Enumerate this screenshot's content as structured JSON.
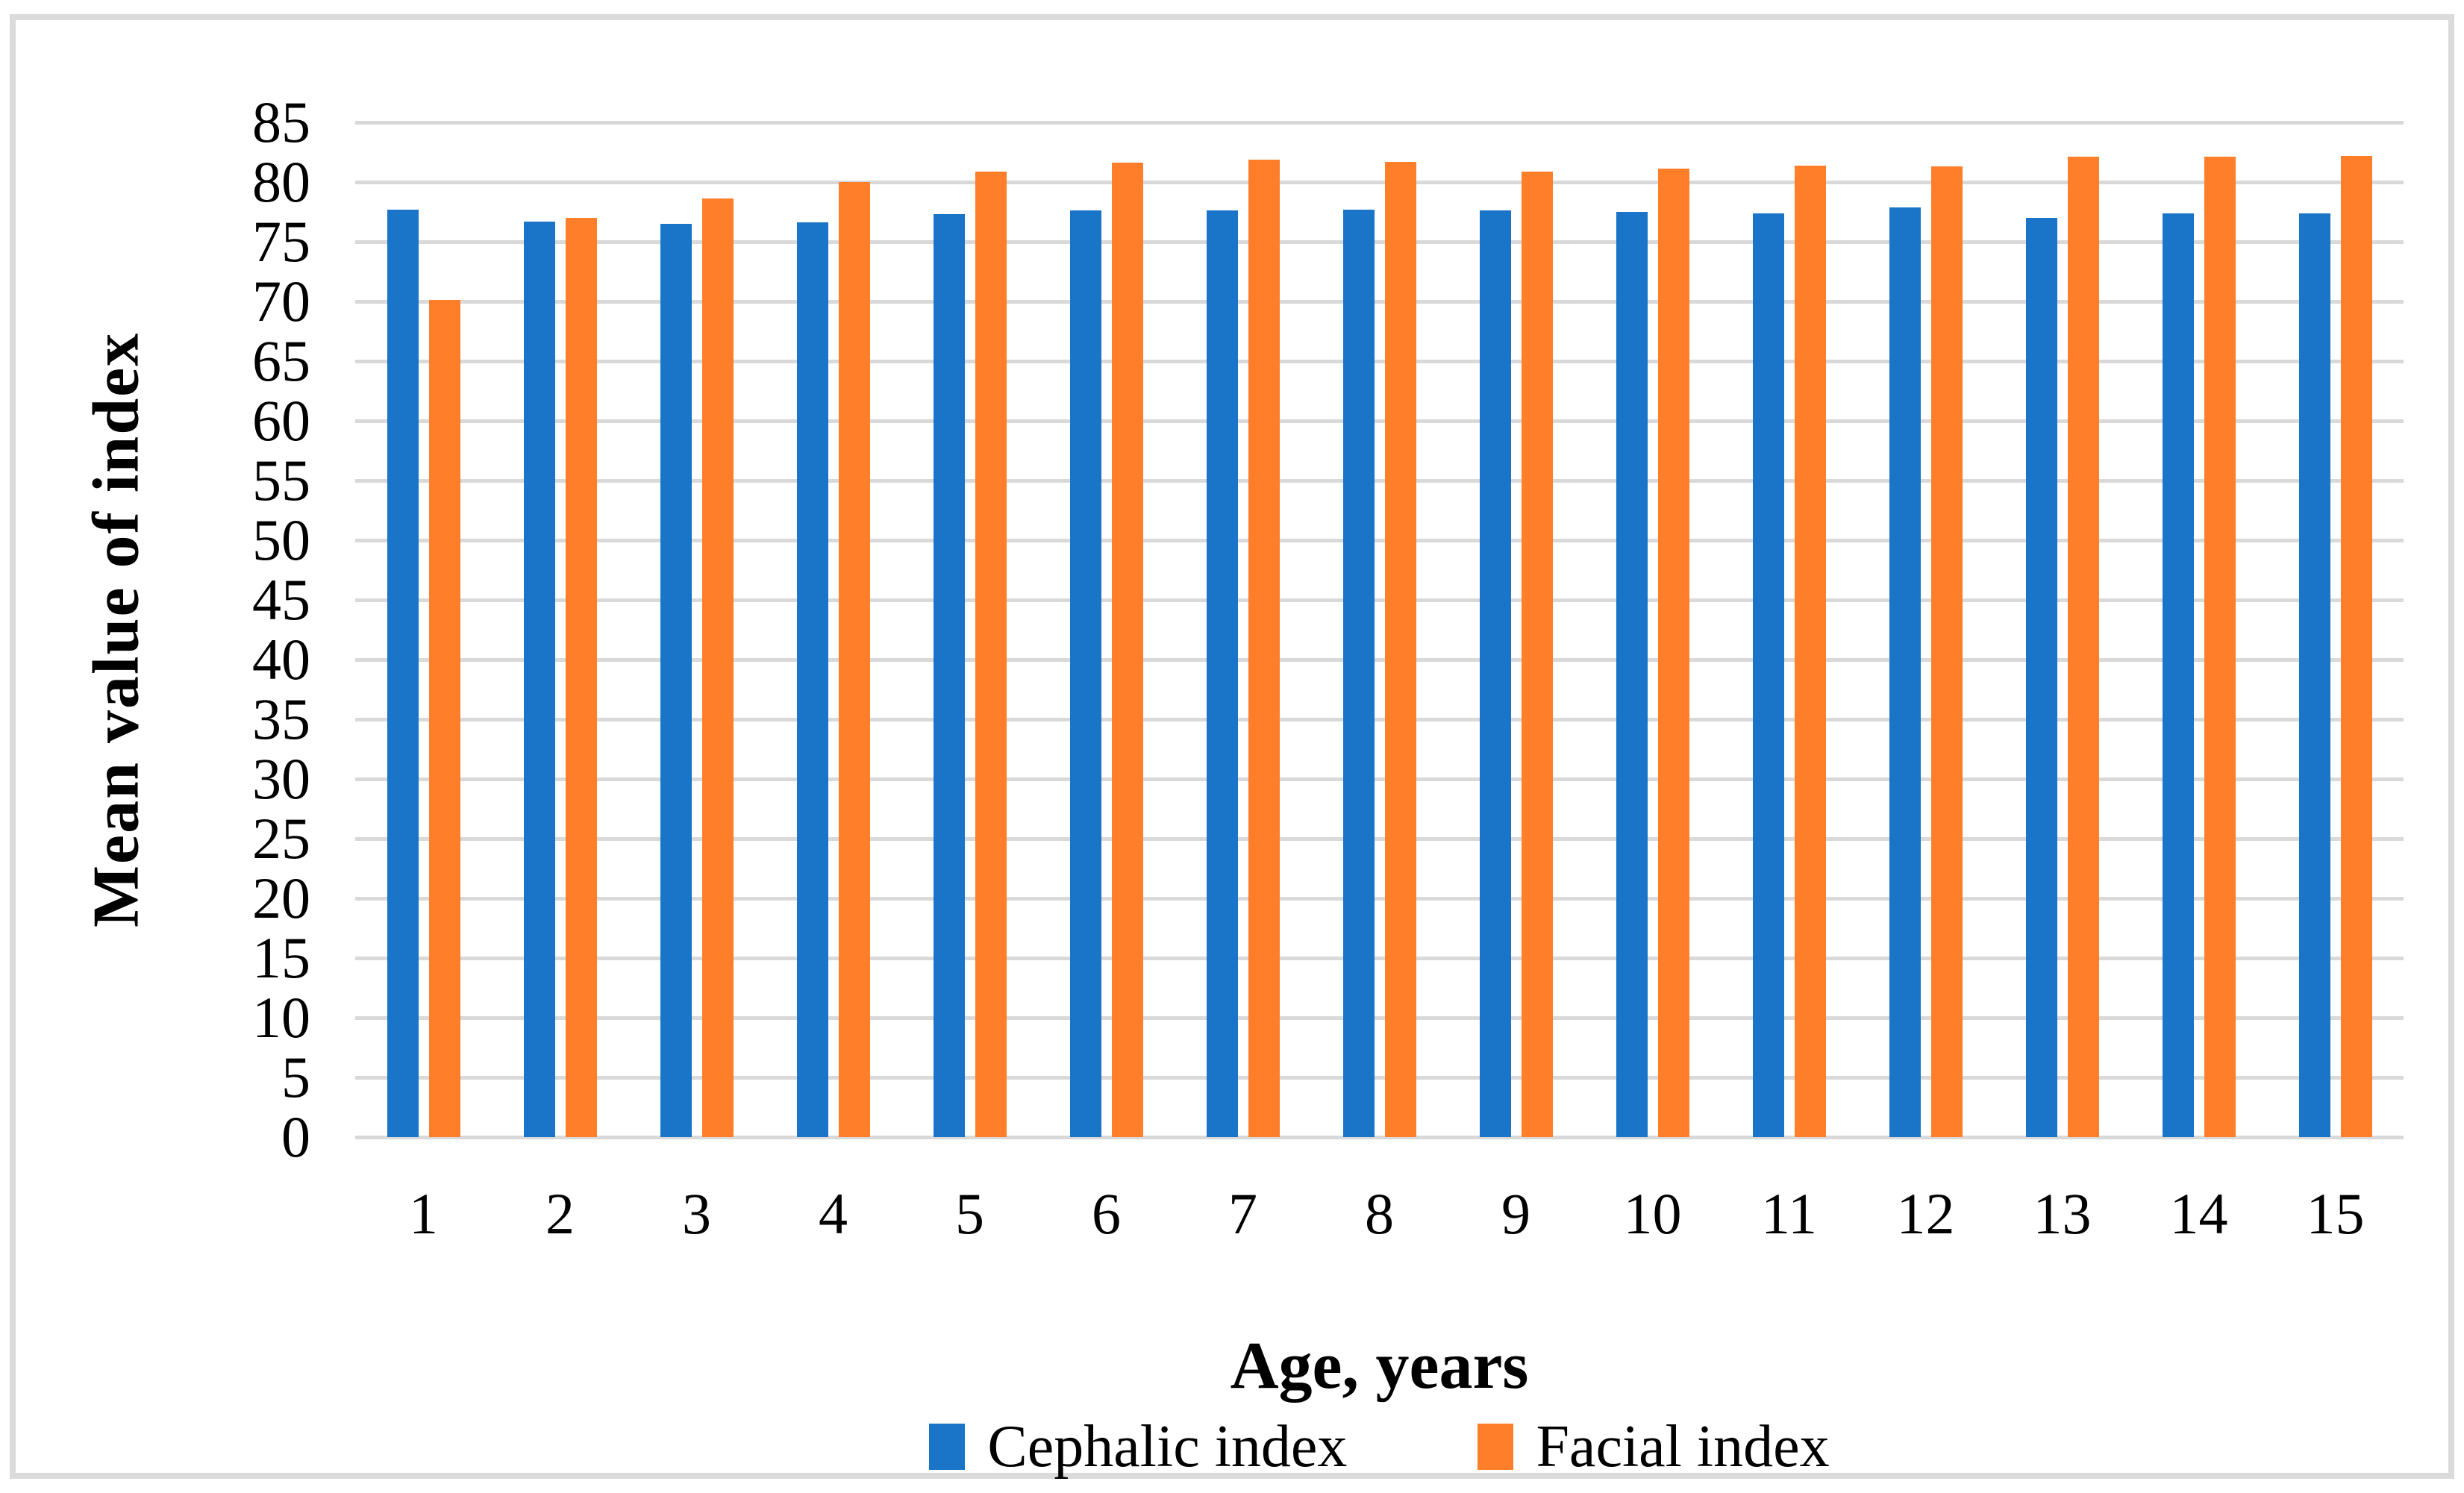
{
  "chart_data": {
    "type": "bar",
    "categories": [
      "1",
      "2",
      "3",
      "4",
      "5",
      "6",
      "7",
      "8",
      "9",
      "10",
      "11",
      "12",
      "13",
      "14",
      "15"
    ],
    "series": [
      {
        "name": "Cephalic index",
        "color": "#1a74c8",
        "values": [
          77.7,
          76.7,
          76.5,
          76.6,
          77.3,
          77.6,
          77.6,
          77.7,
          77.6,
          77.5,
          77.4,
          77.9,
          77.0,
          77.4,
          77.4
        ]
      },
      {
        "name": "Facial index",
        "color": "#ff7e29",
        "values": [
          70.1,
          77.0,
          78.6,
          80.0,
          80.9,
          81.6,
          81.9,
          81.7,
          80.9,
          81.1,
          81.4,
          81.3,
          82.1,
          82.1,
          82.2
        ]
      }
    ],
    "xlabel": "Age, years",
    "ylabel": "Mean value of index",
    "ylim": [
      0,
      85
    ],
    "ytick_step": 5,
    "grid": "horizontal",
    "legend_position": "bottom"
  },
  "colors": {
    "gridline": "#d9d9d9",
    "frame_border": "#dbdbdb",
    "background": "#ffffff",
    "text": "#000000"
  }
}
